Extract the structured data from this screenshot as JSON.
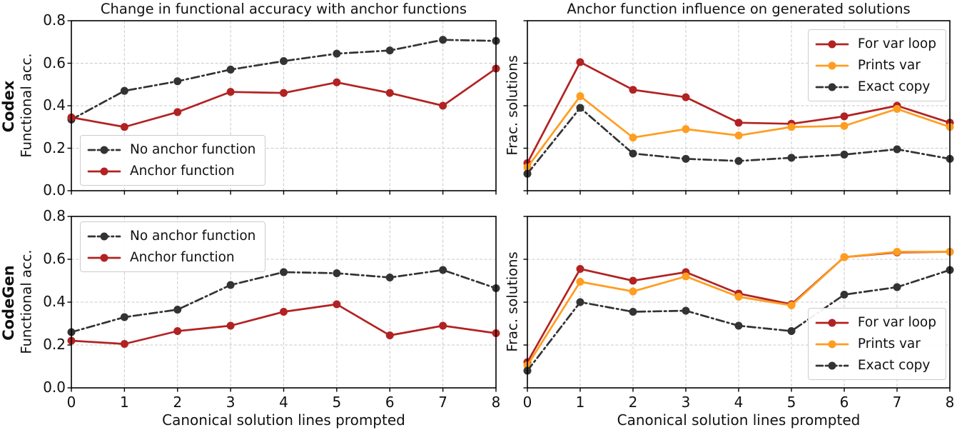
{
  "figure": {
    "row_labels": [
      "Codex",
      "CodeGen"
    ],
    "xlabel": "Canonical solution lines prompted",
    "colors": {
      "axis": "#000000",
      "grid": "#c9c9c9",
      "anchor_red": "#b22222",
      "prints_orange": "#ff9d20",
      "dark_gray": "#333333"
    }
  },
  "chart_data": [
    {
      "id": "codex-accuracy",
      "type": "line",
      "title": "Change in functional accuracy with anchor functions",
      "row_label": "Codex",
      "ylabel": "Functional acc.",
      "x": [
        0,
        1,
        2,
        3,
        4,
        5,
        6,
        7,
        8
      ],
      "xlim": [
        0,
        8
      ],
      "ylim": [
        0,
        0.8
      ],
      "yticks": [
        0.0,
        0.2,
        0.4,
        0.6,
        0.8
      ],
      "ytick_labels": [
        "0.0",
        "0.2",
        "0.4",
        "0.6",
        "0.8"
      ],
      "xtick_labels": null,
      "grid": true,
      "legend_pos": "lower-left",
      "series": [
        {
          "name": "No anchor function",
          "color": "#333333",
          "style": "dashdot",
          "marker": "circle",
          "values": [
            0.335,
            0.47,
            0.515,
            0.57,
            0.61,
            0.645,
            0.66,
            0.71,
            0.705
          ]
        },
        {
          "name": "Anchor function",
          "color": "#b22222",
          "style": "solid",
          "marker": "circle",
          "values": [
            0.345,
            0.3,
            0.37,
            0.465,
            0.46,
            0.51,
            0.46,
            0.4,
            0.575
          ]
        }
      ]
    },
    {
      "id": "codex-influence",
      "type": "line",
      "title": "Anchor function influence on generated solutions",
      "row_label": "Codex",
      "ylabel": "Frac. solutions",
      "x": [
        0,
        1,
        2,
        3,
        4,
        5,
        6,
        7,
        8
      ],
      "xlim": [
        0,
        8
      ],
      "ylim": [
        0,
        0.8
      ],
      "yticks": [
        0.0,
        0.2,
        0.4,
        0.6,
        0.8
      ],
      "ytick_labels": null,
      "xtick_labels": null,
      "grid": true,
      "legend_pos": "upper-right",
      "series": [
        {
          "name": "For var loop",
          "color": "#b22222",
          "style": "solid",
          "marker": "circle",
          "values": [
            0.13,
            0.605,
            0.475,
            0.44,
            0.32,
            0.315,
            0.35,
            0.4,
            0.32
          ]
        },
        {
          "name": "Prints var",
          "color": "#ff9d20",
          "style": "solid",
          "marker": "circle",
          "values": [
            0.11,
            0.445,
            0.25,
            0.29,
            0.26,
            0.3,
            0.305,
            0.385,
            0.3
          ]
        },
        {
          "name": "Exact copy",
          "color": "#333333",
          "style": "dashdot",
          "marker": "circle",
          "values": [
            0.08,
            0.39,
            0.175,
            0.15,
            0.14,
            0.155,
            0.17,
            0.195,
            0.15
          ]
        }
      ]
    },
    {
      "id": "codegen-accuracy",
      "type": "line",
      "title": "",
      "row_label": "CodeGen",
      "ylabel": "Functional acc.",
      "x": [
        0,
        1,
        2,
        3,
        4,
        5,
        6,
        7,
        8
      ],
      "xlim": [
        0,
        8
      ],
      "ylim": [
        0,
        0.8
      ],
      "yticks": [
        0.0,
        0.2,
        0.4,
        0.6,
        0.8
      ],
      "ytick_labels": [
        "0.0",
        "0.2",
        "0.4",
        "0.6",
        "0.8"
      ],
      "xtick_labels": [
        "0",
        "1",
        "2",
        "3",
        "4",
        "5",
        "6",
        "7",
        "8"
      ],
      "grid": true,
      "legend_pos": "upper-left",
      "series": [
        {
          "name": "No anchor function",
          "color": "#333333",
          "style": "dashdot",
          "marker": "circle",
          "values": [
            0.26,
            0.33,
            0.365,
            0.48,
            0.54,
            0.535,
            0.515,
            0.55,
            0.465
          ]
        },
        {
          "name": "Anchor function",
          "color": "#b22222",
          "style": "solid",
          "marker": "circle",
          "values": [
            0.22,
            0.205,
            0.265,
            0.29,
            0.355,
            0.39,
            0.245,
            0.29,
            0.255
          ]
        }
      ]
    },
    {
      "id": "codegen-influence",
      "type": "line",
      "title": "",
      "row_label": "CodeGen",
      "ylabel": "Frac. solutions",
      "x": [
        0,
        1,
        2,
        3,
        4,
        5,
        6,
        7,
        8
      ],
      "xlim": [
        0,
        8
      ],
      "ylim": [
        0,
        0.8
      ],
      "yticks": [
        0.0,
        0.2,
        0.4,
        0.6,
        0.8
      ],
      "ytick_labels": null,
      "xtick_labels": [
        "0",
        "1",
        "2",
        "3",
        "4",
        "5",
        "6",
        "7",
        "8"
      ],
      "grid": true,
      "legend_pos": "lower-right",
      "series": [
        {
          "name": "For var loop",
          "color": "#b22222",
          "style": "solid",
          "marker": "circle",
          "values": [
            0.12,
            0.555,
            0.5,
            0.54,
            0.44,
            0.39,
            0.61,
            0.632,
            0.635
          ]
        },
        {
          "name": "Prints var",
          "color": "#ff9d20",
          "style": "solid",
          "marker": "circle",
          "values": [
            0.105,
            0.495,
            0.45,
            0.52,
            0.425,
            0.385,
            0.61,
            0.635,
            0.635
          ]
        },
        {
          "name": "Exact copy",
          "color": "#333333",
          "style": "dashdot",
          "marker": "circle",
          "values": [
            0.08,
            0.4,
            0.355,
            0.36,
            0.29,
            0.265,
            0.435,
            0.47,
            0.55
          ]
        }
      ]
    }
  ]
}
